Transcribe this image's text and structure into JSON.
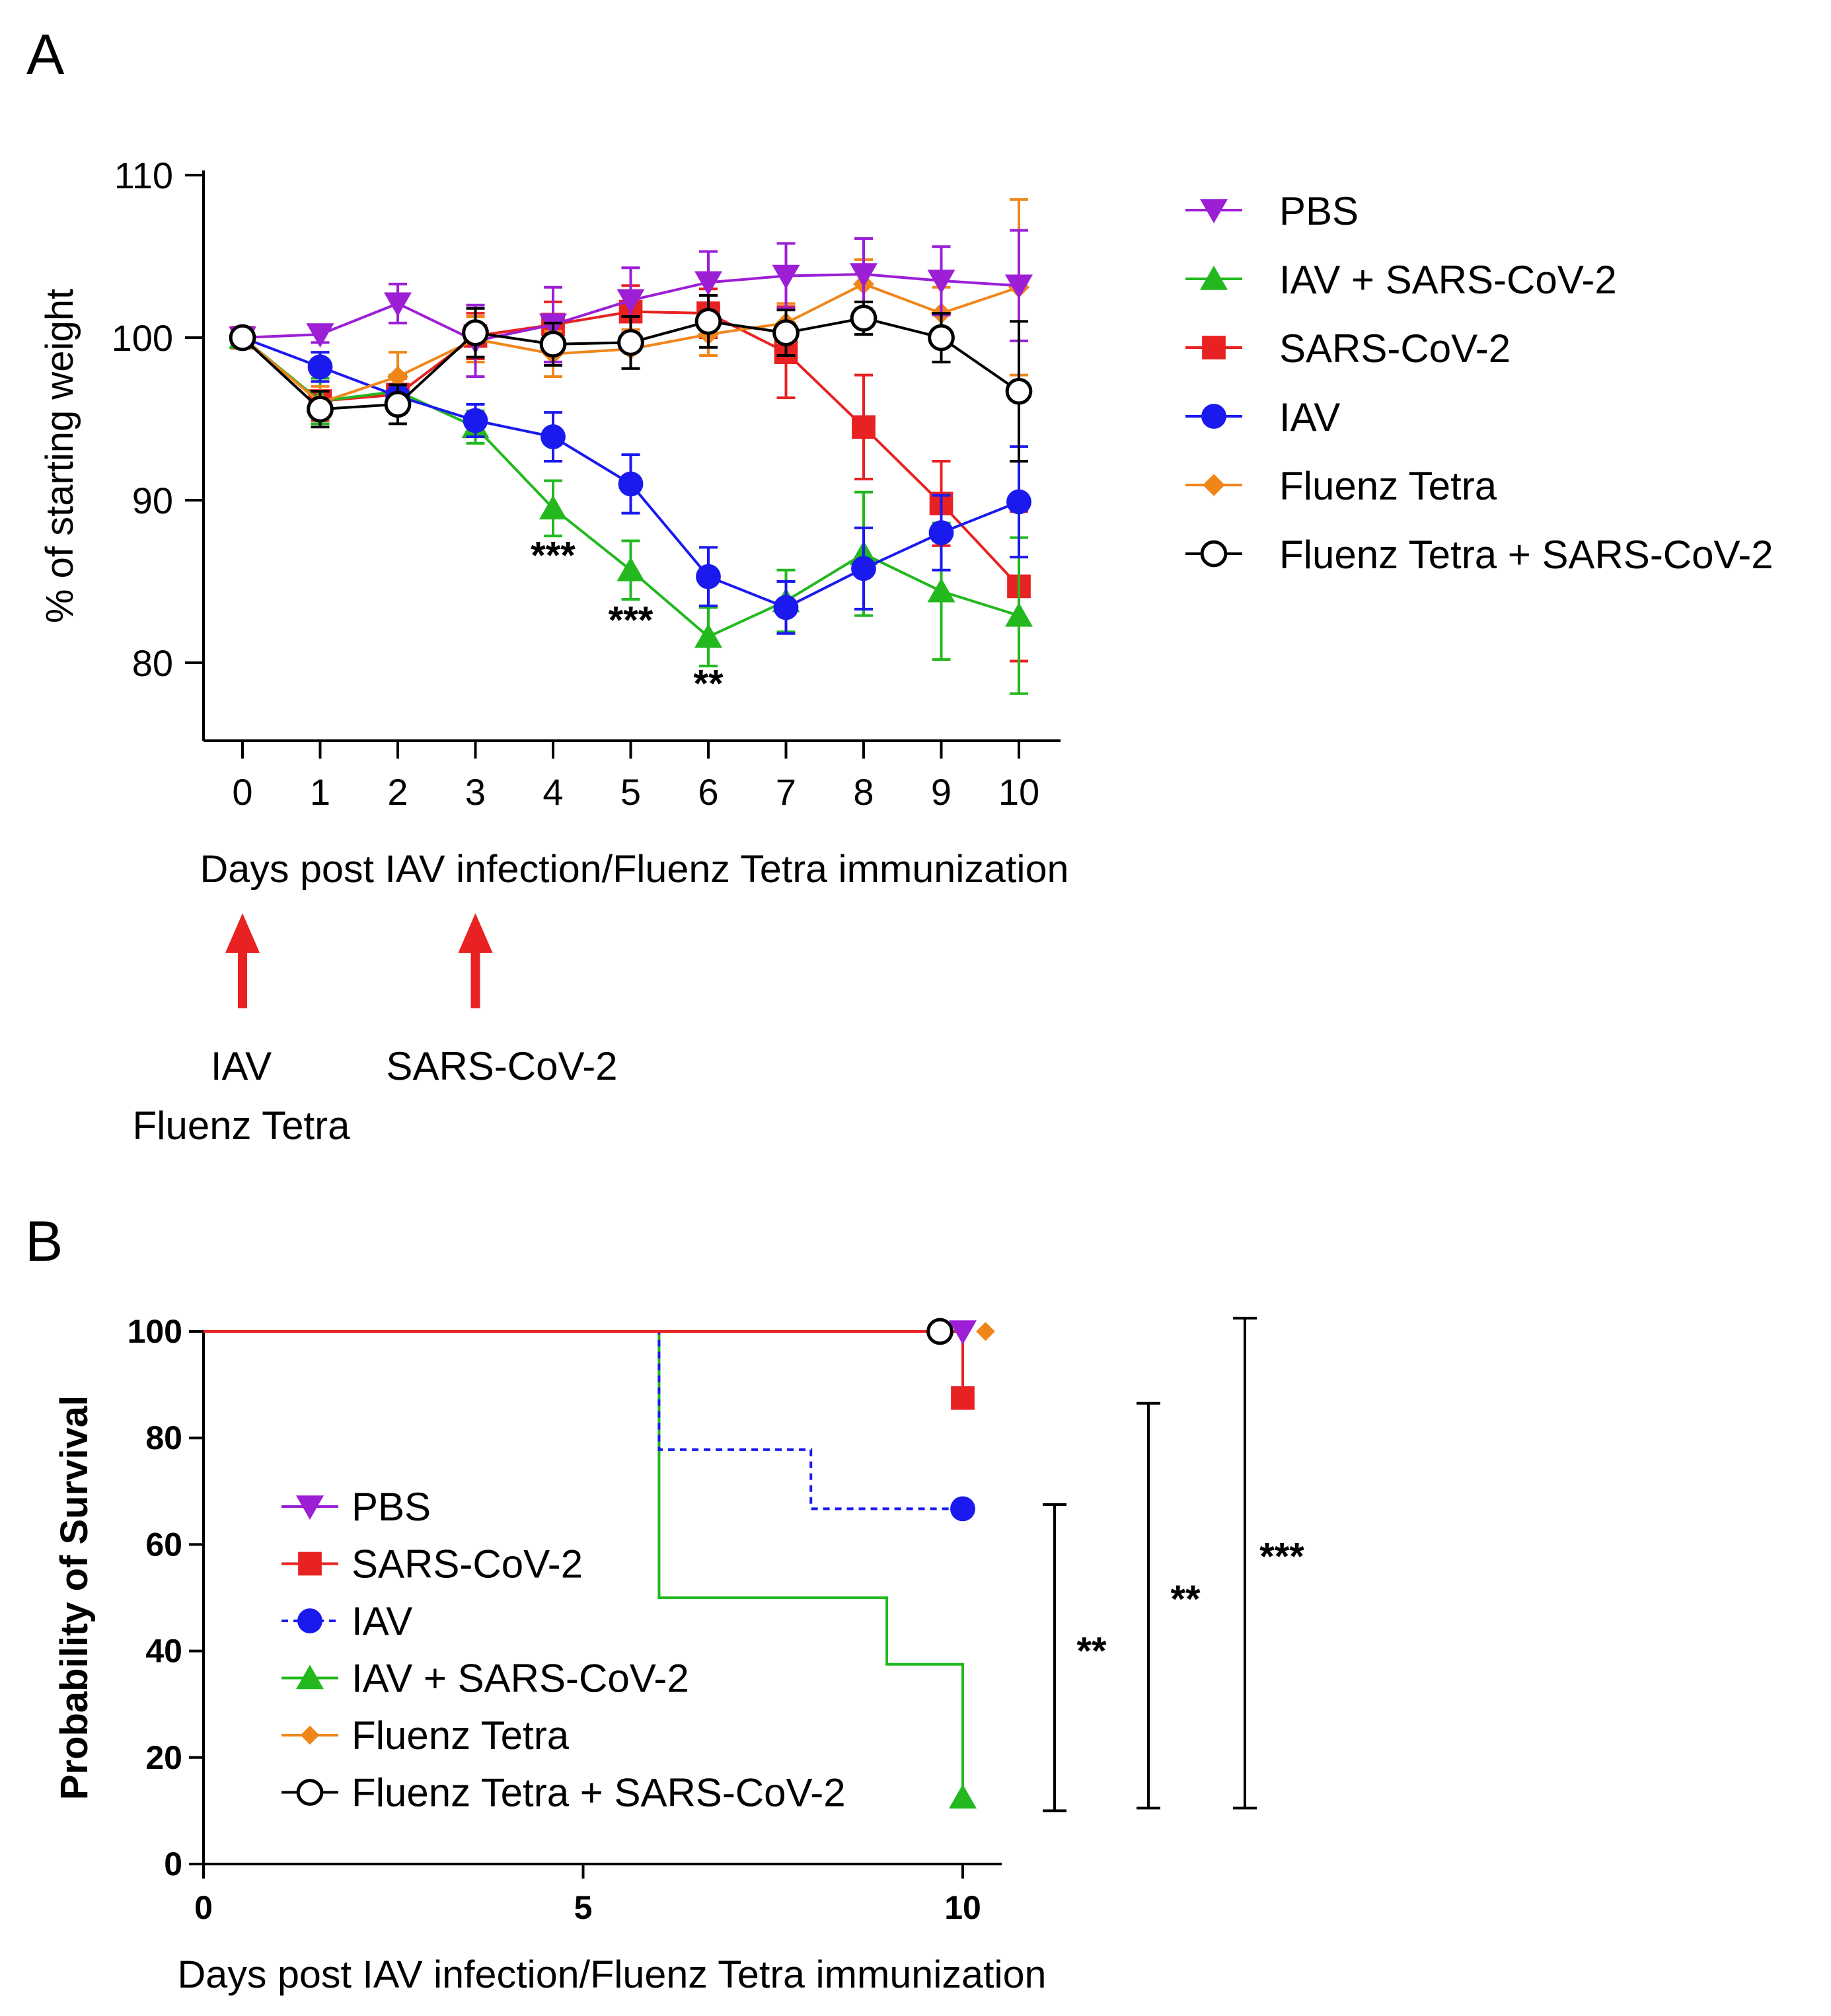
{
  "colors": {
    "PBS": "#9c1fd6",
    "IAV + SARS-CoV-2": "#22b81e",
    "SARS-CoV-2": "#e82222",
    "IAV": "#1a1aef",
    "Fluenz Tetra": "#f0861a",
    "Fluenz Tetra + SARS-CoV-2": "#000000",
    "arrow": "#e82222"
  },
  "chart_data": [
    {
      "panel": "A",
      "type": "line",
      "xlabel": "Days post IAV infection/Fluenz Tetra immunization",
      "ylabel": "% of starting weight",
      "xlim": [
        -0.5,
        10.5
      ],
      "ylim": [
        75,
        110
      ],
      "x": [
        0,
        1,
        2,
        3,
        4,
        5,
        6,
        7,
        8,
        9,
        10
      ],
      "x_tick_labels": [
        "0",
        "1",
        "2",
        "3",
        "4",
        "5",
        "6",
        "7",
        "8",
        "9",
        "10"
      ],
      "y_ticks": [
        80,
        90,
        100,
        110
      ],
      "y_tick_labels": [
        "80",
        "90",
        "100",
        "110"
      ],
      "legend_position": "right",
      "series": [
        {
          "name": "PBS",
          "marker": "triangle-down",
          "values": [
            100,
            100.2,
            102.1,
            99.8,
            100.8,
            102.3,
            103.4,
            103.8,
            103.9,
            103.5,
            103.2
          ],
          "errors": [
            0.3,
            0.5,
            1.2,
            2.2,
            2.3,
            2.0,
            1.9,
            2.0,
            2.2,
            2.1,
            3.4
          ]
        },
        {
          "name": "IAV + SARS-CoV-2",
          "marker": "triangle-up",
          "values": [
            100,
            96.1,
            96.7,
            94.5,
            89.5,
            85.7,
            81.6,
            83.8,
            86.7,
            84.4,
            82.9
          ],
          "errors": [
            0.3,
            1.4,
            1.0,
            1.0,
            1.7,
            1.8,
            1.8,
            1.9,
            3.8,
            4.2,
            4.8
          ]
        },
        {
          "name": "SARS-CoV-2",
          "marker": "square",
          "values": [
            100,
            96.1,
            96.5,
            100.1,
            100.8,
            101.6,
            101.5,
            99.1,
            94.5,
            89.8,
            84.7
          ],
          "errors": [
            0.3,
            1.2,
            1.0,
            1.4,
            1.4,
            1.6,
            1.5,
            2.8,
            3.2,
            2.6,
            4.6
          ]
        },
        {
          "name": "IAV",
          "marker": "circle",
          "values": [
            100,
            98.2,
            96.4,
            94.9,
            93.9,
            91.0,
            85.3,
            83.4,
            85.8,
            88.0,
            89.9
          ],
          "errors": [
            0.3,
            0.9,
            0.7,
            1.0,
            1.5,
            1.8,
            1.8,
            1.6,
            2.5,
            2.3,
            3.4
          ]
        },
        {
          "name": "Fluenz Tetra",
          "marker": "diamond",
          "values": [
            100,
            96.0,
            97.6,
            99.9,
            99.0,
            99.3,
            100.2,
            100.9,
            103.3,
            101.5,
            103.1
          ],
          "errors": [
            0.3,
            1.0,
            1.5,
            1.4,
            1.4,
            1.2,
            1.3,
            1.2,
            1.5,
            1.6,
            5.4
          ]
        },
        {
          "name": "Fluenz Tetra + SARS-CoV-2",
          "marker": "circle-open",
          "values": [
            100,
            95.6,
            95.9,
            100.3,
            99.6,
            99.7,
            101.0,
            100.3,
            101.2,
            100.0,
            96.7
          ],
          "errors": [
            0.3,
            1.1,
            1.2,
            1.5,
            1.3,
            1.6,
            1.6,
            1.4,
            1.0,
            1.5,
            4.3
          ]
        }
      ],
      "annotations": [
        {
          "x": 4,
          "y": 85.8,
          "text": "***"
        },
        {
          "x": 5,
          "y": 81.8,
          "text": "***"
        },
        {
          "x": 6,
          "y": 77.9,
          "text": "**"
        }
      ],
      "timeline": [
        {
          "day": 0,
          "label_lines": [
            "IAV",
            "Fluenz Tetra"
          ]
        },
        {
          "day": 3,
          "label_lines": [
            "SARS-CoV-2"
          ]
        }
      ]
    },
    {
      "panel": "B",
      "type": "line",
      "xlabel": "Days post IAV infection/Fluenz Tetra immunization",
      "ylabel": "Probability of Survival",
      "xlim": [
        0,
        10.5
      ],
      "ylim": [
        0,
        100
      ],
      "x_ticks": [
        0,
        5,
        10
      ],
      "x_tick_labels": [
        "0",
        "5",
        "10"
      ],
      "y_ticks": [
        0,
        20,
        40,
        60,
        80,
        100
      ],
      "y_tick_labels": [
        "0",
        "20",
        "40",
        "60",
        "80",
        "100"
      ],
      "legend_position": "lower-left",
      "series": [
        {
          "name": "PBS",
          "marker": "triangle-down",
          "step": [
            [
              0,
              100
            ],
            [
              10,
              100
            ]
          ],
          "end": [
            10,
            100
          ]
        },
        {
          "name": "SARS-CoV-2",
          "marker": "square",
          "step": [
            [
              0,
              100
            ],
            [
              10,
              100
            ],
            [
              10,
              87.5
            ]
          ],
          "end": [
            10,
            87.5
          ]
        },
        {
          "name": "IAV",
          "marker": "circle",
          "dashed": true,
          "step": [
            [
              0,
              100
            ],
            [
              6,
              100
            ],
            [
              6,
              77.8
            ],
            [
              8,
              77.8
            ],
            [
              8,
              66.7
            ],
            [
              10,
              66.7
            ]
          ],
          "end": [
            10,
            66.7
          ]
        },
        {
          "name": "IAV + SARS-CoV-2",
          "marker": "triangle-up",
          "step": [
            [
              0,
              100
            ],
            [
              6,
              100
            ],
            [
              6,
              50
            ],
            [
              9,
              50
            ],
            [
              9,
              37.5
            ],
            [
              10,
              37.5
            ],
            [
              10,
              12.5
            ]
          ],
          "end": [
            10,
            12.5
          ]
        },
        {
          "name": "Fluenz Tetra",
          "marker": "diamond",
          "step": [
            [
              0,
              100
            ],
            [
              10,
              100
            ]
          ],
          "end": [
            10.3,
            100
          ]
        },
        {
          "name": "Fluenz Tetra + SARS-CoV-2",
          "marker": "circle-open",
          "step": [
            [
              0,
              100
            ],
            [
              10,
              100
            ]
          ],
          "end": [
            9.7,
            100
          ]
        }
      ],
      "significance": [
        {
          "text": "**",
          "y_top": 67.5,
          "y_bottom": 10
        },
        {
          "text": "**",
          "y_top": 86.5,
          "y_bottom": 10.5
        },
        {
          "text": "***",
          "y_top": 102.5,
          "y_bottom": 10.5
        }
      ]
    }
  ]
}
